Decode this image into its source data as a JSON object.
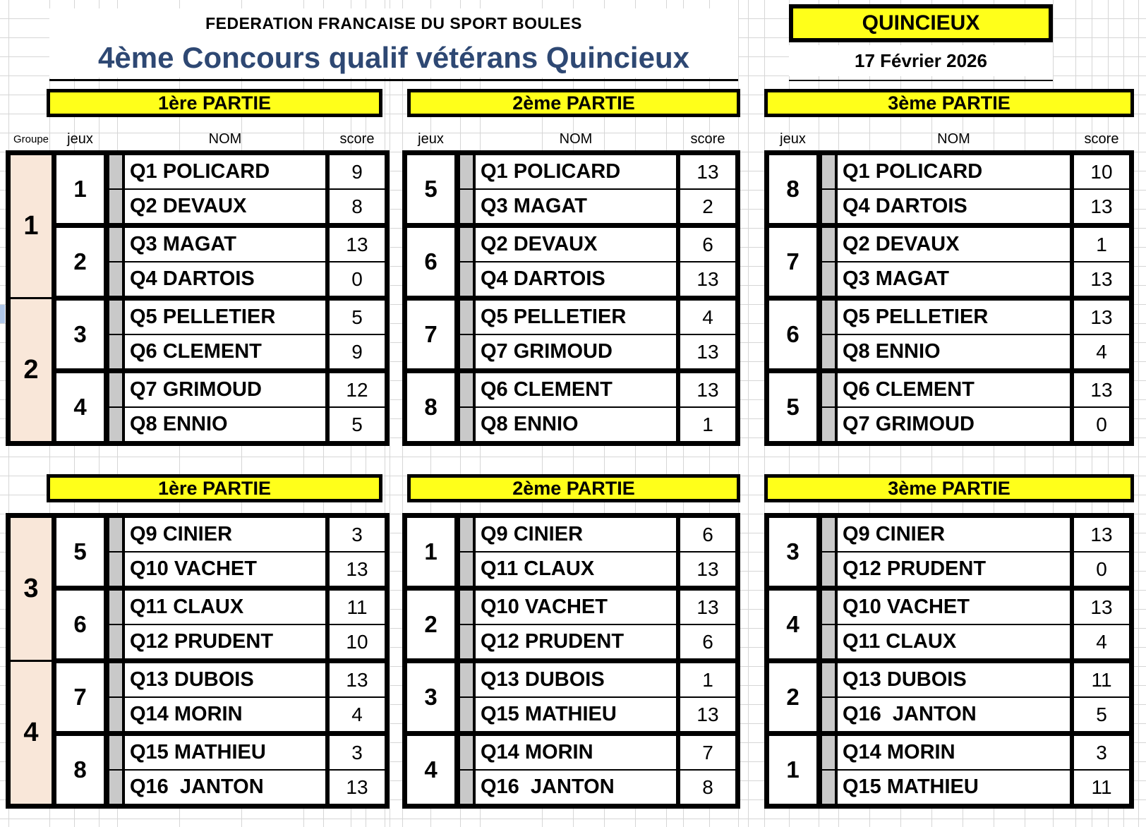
{
  "header": {
    "federation": "FEDERATION FRANCAISE DU SPORT BOULES",
    "title": "4ème Concours qualif vétérans Quincieux",
    "location": "QUINCIEUX",
    "date": "17 Février 2026"
  },
  "column_headers": {
    "groupe": "Groupe",
    "jeux": "jeux",
    "nom": "NOM",
    "score": "score"
  },
  "colors": {
    "header_yellow": "#ffff1a",
    "group_fill": "#f9e7d9",
    "strip_gray": "#c9c9c9",
    "title_blue": "#2e4873"
  },
  "sections": [
    {
      "parties": [
        {
          "label": "1ère PARTIE",
          "groups": [
            "1",
            "2"
          ],
          "matches": [
            {
              "jeux": "1",
              "rows": [
                {
                  "name": "Q1 POLICARD",
                  "score": "9"
                },
                {
                  "name": "Q2 DEVAUX",
                  "score": "8"
                }
              ]
            },
            {
              "jeux": "2",
              "rows": [
                {
                  "name": "Q3 MAGAT",
                  "score": "13"
                },
                {
                  "name": "Q4 DARTOIS",
                  "score": "0"
                }
              ]
            },
            {
              "jeux": "3",
              "rows": [
                {
                  "name": "Q5 PELLETIER",
                  "score": "5"
                },
                {
                  "name": "Q6 CLEMENT",
                  "score": "9"
                }
              ]
            },
            {
              "jeux": "4",
              "rows": [
                {
                  "name": "Q7 GRIMOUD",
                  "score": "12"
                },
                {
                  "name": "Q8 ENNIO",
                  "score": "5"
                }
              ]
            }
          ]
        },
        {
          "label": "2ème PARTIE",
          "matches": [
            {
              "jeux": "5",
              "rows": [
                {
                  "name": "Q1 POLICARD",
                  "score": "13"
                },
                {
                  "name": "Q3 MAGAT",
                  "score": "2"
                }
              ]
            },
            {
              "jeux": "6",
              "rows": [
                {
                  "name": "Q2 DEVAUX",
                  "score": "6"
                },
                {
                  "name": "Q4 DARTOIS",
                  "score": "13"
                }
              ]
            },
            {
              "jeux": "7",
              "rows": [
                {
                  "name": "Q5 PELLETIER",
                  "score": "4"
                },
                {
                  "name": "Q7 GRIMOUD",
                  "score": "13"
                }
              ]
            },
            {
              "jeux": "8",
              "rows": [
                {
                  "name": "Q6 CLEMENT",
                  "score": "13"
                },
                {
                  "name": "Q8 ENNIO",
                  "score": "1"
                }
              ]
            }
          ]
        },
        {
          "label": "3ème PARTIE",
          "matches": [
            {
              "jeux": "8",
              "rows": [
                {
                  "name": "Q1 POLICARD",
                  "score": "10"
                },
                {
                  "name": "Q4 DARTOIS",
                  "score": "13"
                }
              ]
            },
            {
              "jeux": "7",
              "rows": [
                {
                  "name": "Q2 DEVAUX",
                  "score": "1"
                },
                {
                  "name": "Q3 MAGAT",
                  "score": "13"
                }
              ]
            },
            {
              "jeux": "6",
              "rows": [
                {
                  "name": "Q5 PELLETIER",
                  "score": "13"
                },
                {
                  "name": "Q8 ENNIO",
                  "score": "4"
                }
              ]
            },
            {
              "jeux": "5",
              "rows": [
                {
                  "name": "Q6 CLEMENT",
                  "score": "13"
                },
                {
                  "name": "Q7 GRIMOUD",
                  "score": "0"
                }
              ]
            }
          ]
        }
      ]
    },
    {
      "parties": [
        {
          "label": "1ère PARTIE",
          "groups": [
            "3",
            "4"
          ],
          "matches": [
            {
              "jeux": "5",
              "rows": [
                {
                  "name": "Q9 CINIER",
                  "score": "3"
                },
                {
                  "name": "Q10 VACHET",
                  "score": "13"
                }
              ]
            },
            {
              "jeux": "6",
              "rows": [
                {
                  "name": "Q11 CLAUX",
                  "score": "11"
                },
                {
                  "name": "Q12 PRUDENT",
                  "score": "10"
                }
              ]
            },
            {
              "jeux": "7",
              "rows": [
                {
                  "name": "Q13 DUBOIS",
                  "score": "13"
                },
                {
                  "name": "Q14 MORIN",
                  "score": "4"
                }
              ]
            },
            {
              "jeux": "8",
              "rows": [
                {
                  "name": "Q15 MATHIEU",
                  "score": "3"
                },
                {
                  "name": "Q16  JANTON",
                  "score": "13"
                }
              ]
            }
          ]
        },
        {
          "label": "2ème PARTIE",
          "matches": [
            {
              "jeux": "1",
              "rows": [
                {
                  "name": "Q9 CINIER",
                  "score": "6"
                },
                {
                  "name": "Q11 CLAUX",
                  "score": "13"
                }
              ]
            },
            {
              "jeux": "2",
              "rows": [
                {
                  "name": "Q10 VACHET",
                  "score": "13"
                },
                {
                  "name": "Q12 PRUDENT",
                  "score": "6"
                }
              ]
            },
            {
              "jeux": "3",
              "rows": [
                {
                  "name": "Q13 DUBOIS",
                  "score": "1"
                },
                {
                  "name": "Q15 MATHIEU",
                  "score": "13"
                }
              ]
            },
            {
              "jeux": "4",
              "rows": [
                {
                  "name": "Q14 MORIN",
                  "score": "7"
                },
                {
                  "name": "Q16  JANTON",
                  "score": "8"
                }
              ]
            }
          ]
        },
        {
          "label": "3ème PARTIE",
          "matches": [
            {
              "jeux": "3",
              "rows": [
                {
                  "name": "Q9 CINIER",
                  "score": "13"
                },
                {
                  "name": "Q12 PRUDENT",
                  "score": "0"
                }
              ]
            },
            {
              "jeux": "4",
              "rows": [
                {
                  "name": "Q10 VACHET",
                  "score": "13"
                },
                {
                  "name": "Q11 CLAUX",
                  "score": "4"
                }
              ]
            },
            {
              "jeux": "2",
              "rows": [
                {
                  "name": "Q13 DUBOIS",
                  "score": "11"
                },
                {
                  "name": "Q16  JANTON",
                  "score": "5"
                }
              ]
            },
            {
              "jeux": "1",
              "rows": [
                {
                  "name": "Q14 MORIN",
                  "score": "3"
                },
                {
                  "name": "Q15 MATHIEU",
                  "score": "11"
                }
              ]
            }
          ]
        }
      ]
    }
  ]
}
